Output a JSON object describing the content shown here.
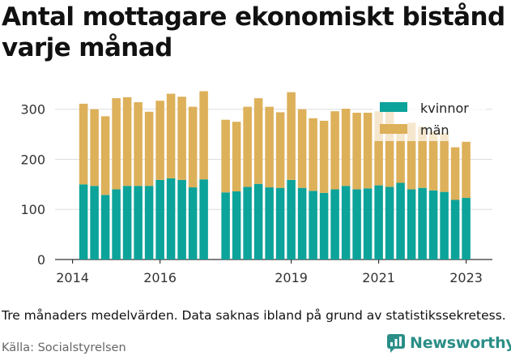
{
  "title": "Antal mottagare ekonomiskt bistånd varje månad",
  "note": "Tre månaders medelvärden. Data saknas ibland på grund av statistikssekretess.",
  "source": "Källa: Socialstyrelsen",
  "brand": {
    "name": "Newsworthy",
    "icon": "newsworthy-logo-icon",
    "color": "#2a8e87"
  },
  "chart_data": {
    "type": "bar",
    "stacked": true,
    "x_axis": {
      "range": [
        2013.6,
        2023.6
      ],
      "ticks": [
        2014,
        2016,
        2019,
        2021,
        2023
      ]
    },
    "y_axis": {
      "range": [
        0,
        340
      ],
      "ticks": [
        0,
        100,
        200,
        300
      ]
    },
    "grid": true,
    "legend": "top-right",
    "x": [
      2014.25,
      2014.5,
      2014.75,
      2015.0,
      2015.25,
      2015.5,
      2015.75,
      2016.0,
      2016.25,
      2016.5,
      2016.75,
      2017.0,
      2017.5,
      2017.75,
      2018.0,
      2018.25,
      2018.5,
      2018.75,
      2019.0,
      2019.25,
      2019.5,
      2019.75,
      2020.0,
      2020.25,
      2020.5,
      2020.75,
      2021.0,
      2021.25,
      2021.5,
      2021.75,
      2022.0,
      2022.25,
      2022.5,
      2022.75,
      2023.0
    ],
    "series": [
      {
        "name": "kvinnor",
        "color": "#0ba39a",
        "values": [
          150,
          147,
          129,
          140,
          147,
          147,
          147,
          159,
          162,
          159,
          144,
          160,
          134,
          136,
          145,
          151,
          144,
          143,
          159,
          143,
          137,
          133,
          140,
          147,
          140,
          142,
          148,
          145,
          153,
          140,
          143,
          138,
          135,
          119,
          123
        ]
      },
      {
        "name": "män",
        "color": "#ddb05a",
        "values": [
          161,
          153,
          157,
          182,
          177,
          167,
          148,
          158,
          169,
          166,
          161,
          176,
          145,
          139,
          160,
          171,
          161,
          151,
          175,
          157,
          145,
          144,
          156,
          154,
          153,
          151,
          148,
          152,
          114,
          133,
          122,
          117,
          118,
          105,
          112
        ]
      }
    ]
  }
}
